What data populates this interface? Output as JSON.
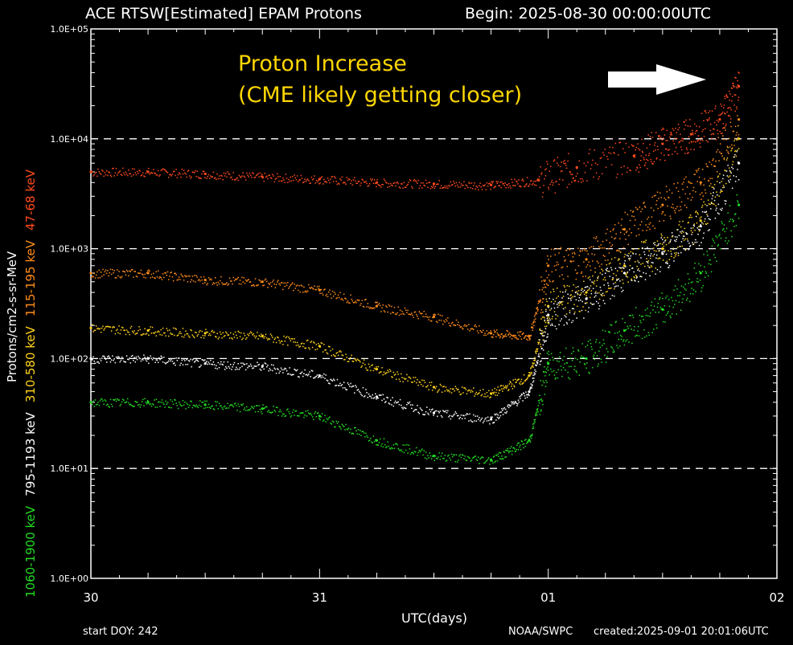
{
  "header": {
    "title": "ACE RTSW[Estimated] EPAM Protons",
    "begin": "Begin: 2025-08-30 00:00:00UTC"
  },
  "annotation": {
    "line1": "Proton Increase",
    "line2": "(CME likely getting closer)",
    "color": "#ffd700"
  },
  "footer": {
    "start_doy": "start DOY: 242",
    "source": "NOAA/SWPC",
    "created": "created:2025-09-01 20:01:06UTC"
  },
  "chart_data": {
    "type": "scatter",
    "title": "ACE RTSW[Estimated] EPAM Protons",
    "xlabel": "UTC(days)",
    "ylabel": "Protons/cm2-s-sr-MeV",
    "log_y": true,
    "ylim": [
      1,
      100000
    ],
    "xlim": [
      "2025-08-30T00:00",
      "2025-09-02T00:00"
    ],
    "x_ticks": [
      "30",
      "31",
      "01",
      "02"
    ],
    "y_ticks": [
      "1.0E+00",
      "1.0E+01",
      "1.0E+02",
      "1.0E+03",
      "1.0E+04",
      "1.0E+05"
    ],
    "grid": "dashed horizontal at 1.0E+01, 1.0E+02, 1.0E+03, 1.0E+04",
    "legend": "left vertical, stacked energy channels",
    "series": [
      {
        "name": "47-68 keV",
        "color": "#ff4a1f",
        "x": [
          "2025-08-30T00:00",
          "2025-08-30T06:00",
          "2025-08-30T12:00",
          "2025-08-30T18:00",
          "2025-08-31T00:00",
          "2025-08-31T06:00",
          "2025-08-31T12:00",
          "2025-08-31T18:00",
          "2025-08-31T23:00",
          "2025-09-01T03:00",
          "2025-09-01T09:00",
          "2025-09-01T12:00",
          "2025-09-01T15:00",
          "2025-09-01T18:00",
          "2025-09-01T20:00"
        ],
        "values": [
          5000,
          5000,
          4800,
          4500,
          4300,
          4000,
          3900,
          3800,
          4200,
          5500,
          7000,
          9000,
          11000,
          15000,
          30000
        ]
      },
      {
        "name": "115-195 keV",
        "color": "#ff8c1a",
        "x": [
          "2025-08-30T00:00",
          "2025-08-30T06:00",
          "2025-08-30T12:00",
          "2025-08-30T18:00",
          "2025-08-31T00:00",
          "2025-08-31T06:00",
          "2025-08-31T12:00",
          "2025-08-31T18:00",
          "2025-08-31T22:00",
          "2025-09-01T00:00",
          "2025-09-01T04:00",
          "2025-09-01T08:00",
          "2025-09-01T12:00",
          "2025-09-01T16:00",
          "2025-09-01T20:00"
        ],
        "values": [
          600,
          600,
          520,
          500,
          420,
          300,
          240,
          170,
          160,
          700,
          800,
          1500,
          2500,
          4000,
          15000
        ]
      },
      {
        "name": "310-580 keV",
        "color": "#ffd21a",
        "x": [
          "2025-08-30T00:00",
          "2025-08-30T06:00",
          "2025-08-30T12:00",
          "2025-08-30T18:00",
          "2025-08-31T00:00",
          "2025-08-31T06:00",
          "2025-08-31T12:00",
          "2025-08-31T18:00",
          "2025-08-31T22:00",
          "2025-09-01T00:00",
          "2025-09-01T04:00",
          "2025-09-01T08:00",
          "2025-09-01T12:00",
          "2025-09-01T16:00",
          "2025-09-01T20:00"
        ],
        "values": [
          190,
          180,
          170,
          160,
          130,
          80,
          55,
          48,
          70,
          300,
          400,
          700,
          1000,
          1800,
          10000
        ]
      },
      {
        "name": "795-1193 keV",
        "color": "#ffffff",
        "x": [
          "2025-08-30T00:00",
          "2025-08-30T06:00",
          "2025-08-30T12:00",
          "2025-08-30T18:00",
          "2025-08-31T00:00",
          "2025-08-31T06:00",
          "2025-08-31T12:00",
          "2025-08-31T18:00",
          "2025-08-31T22:00",
          "2025-09-01T00:00",
          "2025-09-01T04:00",
          "2025-09-01T08:00",
          "2025-09-01T12:00",
          "2025-09-01T16:00",
          "2025-09-01T20:00"
        ],
        "values": [
          100,
          100,
          90,
          85,
          70,
          45,
          32,
          28,
          50,
          250,
          350,
          600,
          900,
          1600,
          6000
        ]
      },
      {
        "name": "1060-1900 keV",
        "color": "#22dd22",
        "x": [
          "2025-08-30T00:00",
          "2025-08-30T06:00",
          "2025-08-30T12:00",
          "2025-08-30T18:00",
          "2025-08-31T00:00",
          "2025-08-31T06:00",
          "2025-08-31T12:00",
          "2025-08-31T18:00",
          "2025-08-31T22:00",
          "2025-09-01T00:00",
          "2025-09-01T04:00",
          "2025-09-01T08:00",
          "2025-09-01T12:00",
          "2025-09-01T16:00",
          "2025-09-01T20:00"
        ],
        "values": [
          40,
          40,
          38,
          35,
          30,
          18,
          13,
          12,
          18,
          90,
          100,
          180,
          280,
          600,
          2500
        ]
      }
    ]
  }
}
